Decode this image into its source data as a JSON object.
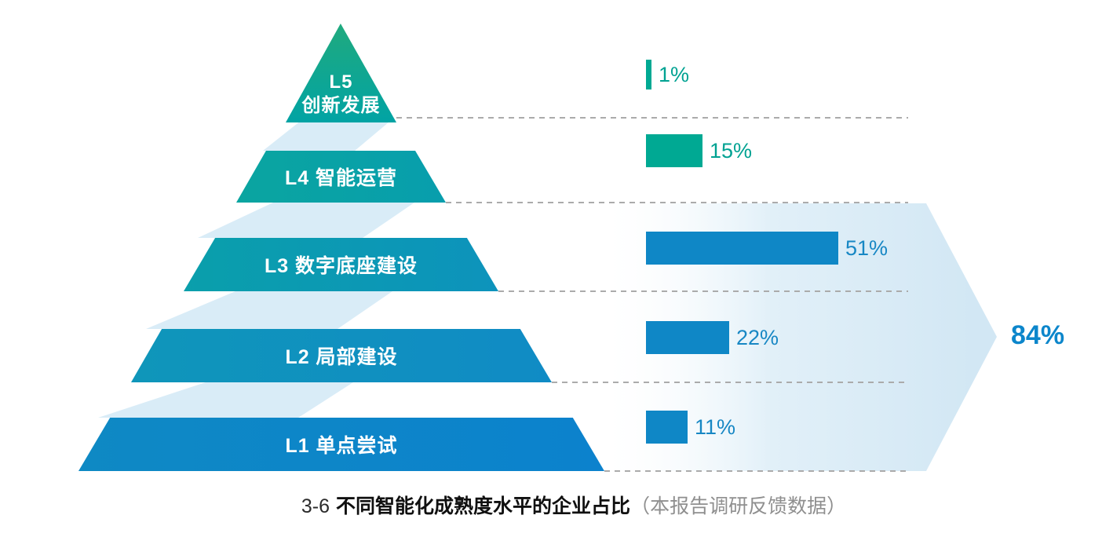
{
  "chart_data": {
    "type": "bar",
    "orientation": "horizontal",
    "title": {
      "prefix": "3-6",
      "main": "不同智能化成熟度水平的企业占比",
      "note": "（本报告调研反馈数据）"
    },
    "categories": [
      "L5 创新发展",
      "L4 智能运营",
      "L3 数字底座建设",
      "L2 局部建设",
      "L1 单点尝试"
    ],
    "values": [
      1,
      15,
      51,
      22,
      11
    ],
    "value_labels": [
      "1%",
      "15%",
      "51%",
      "22%",
      "11%"
    ],
    "xlim": [
      0,
      55
    ],
    "legend": "none",
    "grid": "dashed horizontal separators per pyramid level",
    "aggregate": {
      "value": 84,
      "label": "84%",
      "covers": [
        "L3",
        "L2",
        "L1"
      ]
    }
  },
  "pyramid": {
    "levels": [
      {
        "id": "L5",
        "line1": "L5",
        "line2": "创新发展",
        "color_from": "#20AA7E",
        "color_to": "#01A3A4",
        "bar_color": "#00A993",
        "label_color": "#00A292"
      },
      {
        "id": "L4",
        "line1": "L4 智能运营",
        "line2": "",
        "color_from": "#0AA5A0",
        "color_to": "#089EAD",
        "bar_color": "#00A993",
        "label_color": "#00A292"
      },
      {
        "id": "L3",
        "line1": "L3 数字底座建设",
        "line2": "",
        "color_from": "#0A9FAB",
        "color_to": "#0D93BC",
        "bar_color": "#0F87C6",
        "label_color": "#1787C4"
      },
      {
        "id": "L2",
        "line1": "L2 局部建设",
        "line2": "",
        "color_from": "#0F96BA",
        "color_to": "#108BC5",
        "bar_color": "#0F87C6",
        "label_color": "#1787C4"
      },
      {
        "id": "L1",
        "line1": "L1 单点尝试",
        "line2": "",
        "color_from": "#0E89C4",
        "color_to": "#0C82CD",
        "bar_color": "#0F87C6",
        "label_color": "#1787C4"
      }
    ]
  },
  "colors": {
    "swoosh": "#D9ECF7",
    "arrow_light": "#FFFFFF",
    "arrow_mid": "#DCEDF7",
    "arrow_deep": "#D2E7F4",
    "dashed_line": "#ABABAB",
    "aggregate_label": "#0C86CB",
    "caption_prefix": "#2B2B2B",
    "caption_main": "#101010",
    "caption_note": "#8F8F8F"
  }
}
